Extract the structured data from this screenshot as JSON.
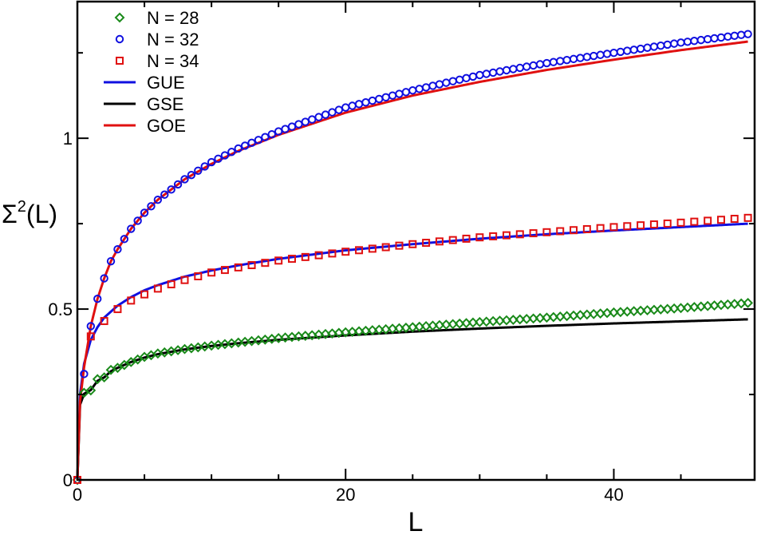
{
  "chart_data": {
    "type": "scatter",
    "xlabel": "L",
    "ylabel_main": "Σ",
    "ylabel_sup": "2",
    "ylabel_tail": "(L)",
    "xlim": [
      0,
      50.5
    ],
    "ylim": [
      0,
      1.4
    ],
    "x_ticks": [
      {
        "value": 0,
        "label": "0"
      },
      {
        "value": 20,
        "label": "20"
      },
      {
        "value": 40,
        "label": "40"
      }
    ],
    "x_minor_ticks": [
      5,
      10,
      15,
      25,
      30,
      35,
      45
    ],
    "y_ticks": [
      {
        "value": 0,
        "label": "0"
      },
      {
        "value": 0.5,
        "label": "0.5"
      },
      {
        "value": 1,
        "label": "1"
      }
    ],
    "y_minor_ticks": [
      0.25,
      0.75,
      1.25
    ],
    "grid": false,
    "legend_position": "top-left",
    "legend": [
      {
        "label": "N = 28",
        "kind": "marker",
        "marker": "diamond",
        "color": "#1a8a1a"
      },
      {
        "label": "N = 32",
        "kind": "marker",
        "marker": "circle",
        "color": "#1010e0"
      },
      {
        "label": "N = 34",
        "kind": "marker",
        "marker": "square",
        "color": "#e01010"
      },
      {
        "label": "GUE",
        "kind": "line",
        "color": "#1010e0"
      },
      {
        "label": "GSE",
        "kind": "line",
        "color": "#000000"
      },
      {
        "label": "GOE",
        "kind": "line",
        "color": "#e01010"
      }
    ],
    "series": [
      {
        "name": "N = 28",
        "kind": "scatter",
        "marker": "diamond",
        "color": "#1a8a1a",
        "step": 0.5,
        "x": [
          0,
          0.5,
          1,
          1.5,
          2,
          2.5,
          3,
          4,
          5,
          6,
          8,
          10,
          12,
          15,
          20,
          25,
          30,
          35,
          40,
          45,
          50
        ],
        "y": [
          0,
          0.255,
          0.262,
          0.295,
          0.3,
          0.322,
          0.328,
          0.345,
          0.36,
          0.37,
          0.383,
          0.393,
          0.402,
          0.415,
          0.432,
          0.447,
          0.462,
          0.475,
          0.49,
          0.503,
          0.518
        ]
      },
      {
        "name": "N = 32",
        "kind": "scatter",
        "marker": "circle",
        "color": "#1010e0",
        "step": 0.5,
        "x": [
          0,
          0.5,
          1,
          1.5,
          2,
          2.5,
          3,
          4,
          5,
          6,
          8,
          10,
          12,
          15,
          20,
          25,
          30,
          35,
          40,
          45,
          50
        ],
        "y": [
          0,
          0.31,
          0.45,
          0.53,
          0.59,
          0.64,
          0.675,
          0.735,
          0.782,
          0.82,
          0.88,
          0.93,
          0.97,
          1.02,
          1.09,
          1.14,
          1.185,
          1.22,
          1.25,
          1.28,
          1.305
        ]
      },
      {
        "name": "N = 34",
        "kind": "scatter",
        "marker": "square",
        "color": "#e01010",
        "step": 1,
        "x": [
          0,
          0.5,
          1,
          2,
          3,
          4,
          5,
          6,
          8,
          10,
          12,
          15,
          20,
          25,
          30,
          35,
          40,
          45,
          50
        ],
        "y": [
          0,
          0.35,
          0.42,
          0.465,
          0.5,
          0.525,
          0.543,
          0.56,
          0.585,
          0.607,
          0.622,
          0.642,
          0.668,
          0.69,
          0.71,
          0.725,
          0.74,
          0.753,
          0.767
        ]
      },
      {
        "name": "GUE",
        "kind": "line",
        "color": "#1010e0",
        "x": [
          0,
          0.2,
          0.5,
          1,
          1.5,
          2,
          3,
          4,
          5,
          6,
          8,
          10,
          12,
          15,
          20,
          25,
          30,
          35,
          40,
          45,
          50
        ],
        "y": [
          0,
          0.25,
          0.34,
          0.41,
          0.447,
          0.475,
          0.51,
          0.535,
          0.555,
          0.57,
          0.595,
          0.613,
          0.628,
          0.647,
          0.672,
          0.69,
          0.706,
          0.719,
          0.73,
          0.74,
          0.75
        ]
      },
      {
        "name": "GSE",
        "kind": "line",
        "color": "#000000",
        "x": [
          0,
          0.2,
          0.5,
          1,
          1.5,
          2,
          2.5,
          3,
          4,
          5,
          6,
          8,
          10,
          12,
          15,
          20,
          25,
          30,
          35,
          40,
          45,
          50
        ],
        "y": [
          0,
          0.22,
          0.252,
          0.263,
          0.29,
          0.3,
          0.318,
          0.328,
          0.345,
          0.358,
          0.368,
          0.382,
          0.392,
          0.4,
          0.41,
          0.423,
          0.434,
          0.443,
          0.451,
          0.458,
          0.464,
          0.47
        ]
      },
      {
        "name": "GOE",
        "kind": "line",
        "color": "#e01010",
        "x": [
          0,
          0.2,
          0.5,
          1,
          1.5,
          2,
          2.5,
          3,
          4,
          5,
          6,
          8,
          10,
          12,
          15,
          20,
          25,
          30,
          35,
          40,
          45,
          50
        ],
        "y": [
          0,
          0.23,
          0.33,
          0.45,
          0.53,
          0.59,
          0.64,
          0.675,
          0.735,
          0.782,
          0.82,
          0.88,
          0.925,
          0.963,
          1.01,
          1.075,
          1.125,
          1.165,
          1.2,
          1.23,
          1.258,
          1.283
        ]
      }
    ]
  }
}
